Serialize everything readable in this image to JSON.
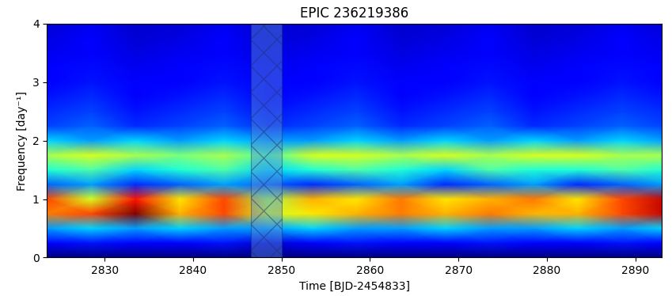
{
  "chart_data": {
    "type": "heatmap",
    "title": "EPIC 236219386",
    "x_label": "Time [BJD-2454833]",
    "y_label": "Frequency [day⁻¹]",
    "x": [
      2823.5,
      2828.5,
      2833.5,
      2838.5,
      2843.5,
      2848.5,
      2853.5,
      2858.5,
      2863.5,
      2868.5,
      2873.5,
      2878.5,
      2883.5,
      2888.5,
      2893.5
    ],
    "y": [
      0.0,
      0.25,
      0.5,
      0.75,
      1.0,
      1.25,
      1.5,
      1.75,
      2.0,
      2.25,
      2.5,
      2.75,
      3.0,
      3.25,
      3.5,
      3.75,
      4.0
    ],
    "cells": [
      [
        0.05,
        0.05,
        0.05,
        0.05,
        0.05,
        0.05,
        0.05,
        0.05,
        0.05,
        0.05,
        0.05,
        0.05,
        0.05,
        0.05,
        0.05
      ],
      [
        0.15,
        0.18,
        0.15,
        0.15,
        0.18,
        0.12,
        0.15,
        0.18,
        0.15,
        0.15,
        0.18,
        0.15,
        0.15,
        0.18,
        0.15
      ],
      [
        0.3,
        0.35,
        0.3,
        0.35,
        0.3,
        0.3,
        0.35,
        0.3,
        0.3,
        0.35,
        0.3,
        0.3,
        0.35,
        0.3,
        0.35
      ],
      [
        0.75,
        0.8,
        0.95,
        0.7,
        0.8,
        0.6,
        0.65,
        0.7,
        0.75,
        0.7,
        0.75,
        0.7,
        0.7,
        0.8,
        0.9
      ],
      [
        0.8,
        0.6,
        0.85,
        0.65,
        0.8,
        0.55,
        0.7,
        0.65,
        0.75,
        0.65,
        0.7,
        0.75,
        0.65,
        0.8,
        0.9
      ],
      [
        0.25,
        0.3,
        0.2,
        0.25,
        0.3,
        0.25,
        0.2,
        0.25,
        0.3,
        0.2,
        0.25,
        0.3,
        0.2,
        0.25,
        0.3
      ],
      [
        0.4,
        0.45,
        0.35,
        0.4,
        0.45,
        0.35,
        0.4,
        0.45,
        0.4,
        0.35,
        0.45,
        0.4,
        0.4,
        0.45,
        0.4
      ],
      [
        0.55,
        0.6,
        0.55,
        0.5,
        0.55,
        0.45,
        0.6,
        0.6,
        0.55,
        0.6,
        0.55,
        0.6,
        0.6,
        0.55,
        0.55
      ],
      [
        0.35,
        0.3,
        0.35,
        0.3,
        0.35,
        0.3,
        0.3,
        0.35,
        0.3,
        0.35,
        0.3,
        0.35,
        0.3,
        0.35,
        0.3
      ],
      [
        0.22,
        0.25,
        0.2,
        0.22,
        0.25,
        0.2,
        0.22,
        0.25,
        0.2,
        0.22,
        0.25,
        0.2,
        0.22,
        0.25,
        0.22
      ],
      [
        0.2,
        0.22,
        0.18,
        0.2,
        0.22,
        0.18,
        0.2,
        0.22,
        0.18,
        0.2,
        0.22,
        0.18,
        0.2,
        0.22,
        0.2
      ],
      [
        0.18,
        0.2,
        0.16,
        0.18,
        0.2,
        0.16,
        0.18,
        0.2,
        0.16,
        0.18,
        0.2,
        0.16,
        0.18,
        0.2,
        0.18
      ],
      [
        0.16,
        0.18,
        0.15,
        0.16,
        0.18,
        0.15,
        0.16,
        0.18,
        0.15,
        0.16,
        0.18,
        0.15,
        0.16,
        0.18,
        0.16
      ],
      [
        0.15,
        0.17,
        0.14,
        0.15,
        0.17,
        0.14,
        0.15,
        0.17,
        0.14,
        0.15,
        0.17,
        0.14,
        0.15,
        0.17,
        0.15
      ],
      [
        0.14,
        0.16,
        0.13,
        0.14,
        0.16,
        0.13,
        0.14,
        0.16,
        0.13,
        0.14,
        0.16,
        0.13,
        0.14,
        0.16,
        0.14
      ],
      [
        0.13,
        0.15,
        0.12,
        0.13,
        0.15,
        0.12,
        0.13,
        0.15,
        0.12,
        0.13,
        0.15,
        0.12,
        0.13,
        0.15,
        0.13
      ],
      [
        0.12,
        0.14,
        0.11,
        0.12,
        0.14,
        0.11,
        0.12,
        0.14,
        0.11,
        0.12,
        0.14,
        0.11,
        0.12,
        0.14,
        0.12
      ]
    ],
    "gap": [
      2846.5,
      2850.0
    ],
    "xlim": [
      2823.5,
      2893.0
    ],
    "xticks": [
      2830,
      2840,
      2850,
      2860,
      2870,
      2880,
      2890
    ],
    "ylim": [
      0,
      4
    ],
    "yticks": [
      0,
      1,
      2,
      3,
      4
    ]
  }
}
